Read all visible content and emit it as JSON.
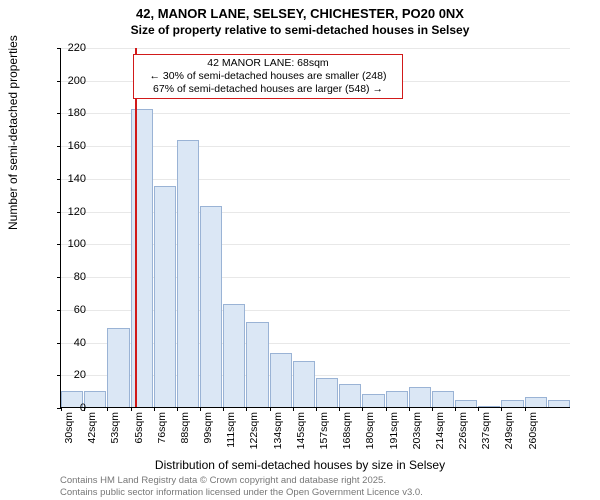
{
  "title": "42, MANOR LANE, SELSEY, CHICHESTER, PO20 0NX",
  "subtitle": "Size of property relative to semi-detached houses in Selsey",
  "chart": {
    "type": "histogram",
    "background_color": "#ffffff",
    "grid_color": "#e8e8e8",
    "axis_color": "#000000",
    "bar_fill": "#dbe7f5",
    "bar_stroke": "#9ab3d5",
    "ylabel": "Number of semi-detached properties",
    "xlabel": "Distribution of semi-detached houses by size in Selsey",
    "label_fontsize": 12,
    "tick_fontsize": 11,
    "ylim": [
      0,
      220
    ],
    "ytick_step": 20,
    "xticks": [
      "30sqm",
      "42sqm",
      "53sqm",
      "65sqm",
      "76sqm",
      "88sqm",
      "99sqm",
      "111sqm",
      "122sqm",
      "134sqm",
      "145sqm",
      "157sqm",
      "168sqm",
      "180sqm",
      "191sqm",
      "203sqm",
      "214sqm",
      "226sqm",
      "237sqm",
      "249sqm",
      "260sqm"
    ],
    "values": [
      10,
      10,
      48,
      182,
      135,
      163,
      123,
      63,
      52,
      33,
      28,
      18,
      14,
      8,
      10,
      12,
      10,
      4,
      0,
      4,
      6,
      4
    ],
    "reference_line": {
      "x_index_between": 3.2,
      "color": "#d11a1a"
    },
    "annotation": {
      "line1": "42 MANOR LANE: 68sqm",
      "line2": "← 30% of semi-detached houses are smaller (248)",
      "line3": "67% of semi-detached houses are larger (548) →",
      "border_color": "#d11a1a",
      "background_color": "#ffffff"
    }
  },
  "footer": {
    "line1": "Contains HM Land Registry data © Crown copyright and database right 2025.",
    "line2": "Contains public sector information licensed under the Open Government Licence v3.0."
  }
}
